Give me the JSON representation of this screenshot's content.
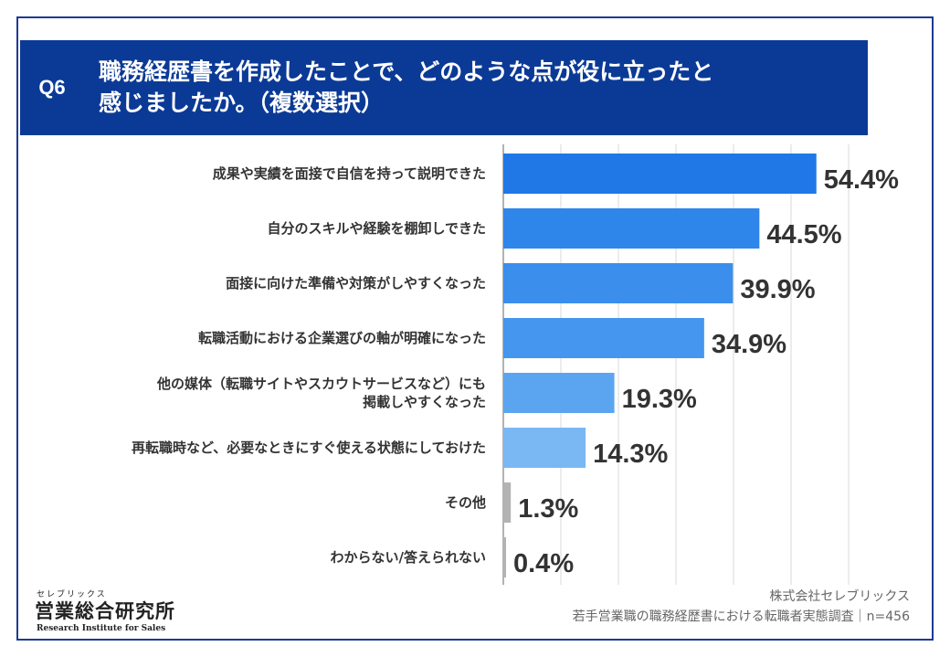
{
  "question": {
    "badge": "Q6",
    "title_line1": "職務経歴書を作成したことで、どのような点が役に立ったと",
    "title_line2": "感じましたか。（複数選択）"
  },
  "chart_data": {
    "type": "bar",
    "orientation": "horizontal",
    "categories": [
      [
        "成果や実績を面接で自信を持って説明できた"
      ],
      [
        "自分のスキルや経験を棚卸しできた"
      ],
      [
        "面接に向けた準備や対策がしやすくなった"
      ],
      [
        "転職活動における企業選びの軸が明確になった"
      ],
      [
        "他の媒体（転職サイトやスカウトサービスなど）にも",
        "掲載しやすくなった"
      ],
      [
        "再転職時など、必要なときにすぐ使える状態にしておけた"
      ],
      [
        "その他"
      ],
      [
        "わからない/答えられない"
      ]
    ],
    "values": [
      54.4,
      44.5,
      39.9,
      34.9,
      19.3,
      14.3,
      1.3,
      0.4
    ],
    "value_labels": [
      "54.4%",
      "44.5%",
      "39.9%",
      "34.9%",
      "19.3%",
      "14.3%",
      "1.3%",
      "0.4%"
    ],
    "colors": [
      "#1f78e6",
      "#2f86ea",
      "#3b8eec",
      "#4596ee",
      "#5ba5f0",
      "#7ab8f4",
      "#b3b3b3",
      "#b3b3b3"
    ],
    "xlim": [
      0,
      60
    ],
    "grid": true
  },
  "logo": {
    "small": "セレブリックス",
    "main": "営業総合研究所",
    "sub": "Research Institute for Sales"
  },
  "source": {
    "line1": "株式会社セレブリックス",
    "line2": "若手営業職の職務経歴書における転職者実態調査｜n=456"
  }
}
